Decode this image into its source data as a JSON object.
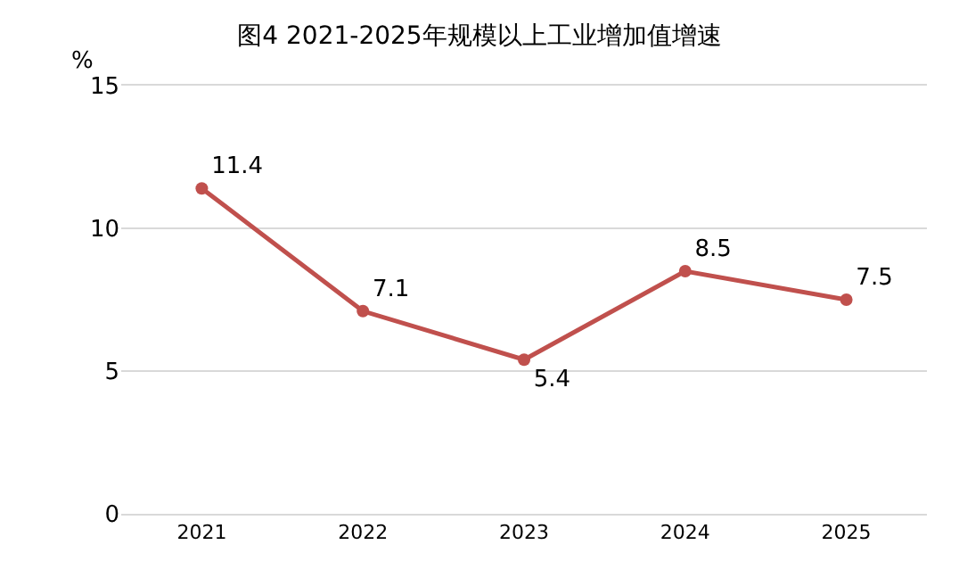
{
  "chart_data": {
    "type": "line",
    "title": "图4 2021-2025年规模以上工业增加值增速",
    "ylabel": "%",
    "categories": [
      "2021",
      "2022",
      "2023",
      "2024",
      "2025"
    ],
    "series": [
      {
        "color": "#c0504d",
        "values": [
          11.4,
          7.1,
          5.4,
          8.5,
          7.5
        ]
      }
    ],
    "ylim": [
      0,
      15
    ],
    "yticks": [
      0,
      5,
      10,
      15
    ],
    "grid": "y",
    "marker": "circle",
    "line_style": "solid",
    "data_labels": true
  }
}
